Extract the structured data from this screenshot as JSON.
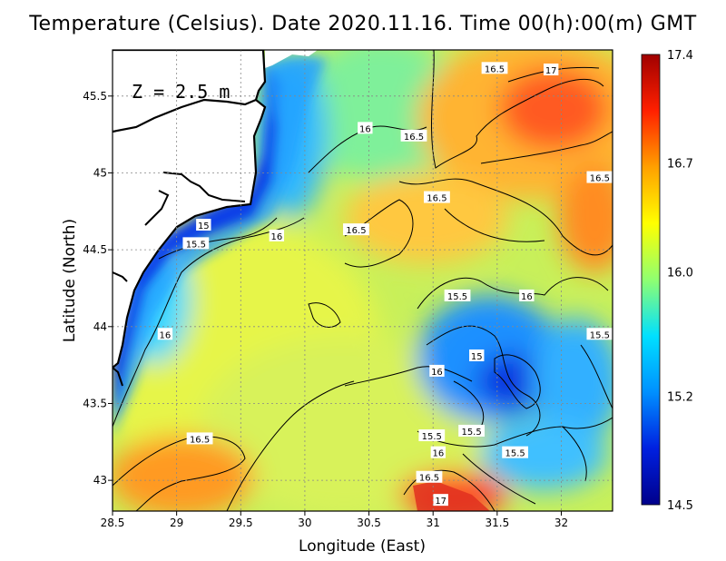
{
  "title": "Temperature (Celsius). Date 2020.11.16. Time 00(h):00(m) GMT",
  "depth_label": "Z = 2.5 m",
  "x_axis": {
    "label": "Longitude (East)",
    "ticks": [
      "28.5",
      "29",
      "29.5",
      "30",
      "30.5",
      "31",
      "31.5",
      "32"
    ],
    "range": [
      28.5,
      32.4
    ]
  },
  "y_axis": {
    "label": "Latitude (North)",
    "ticks": [
      "43",
      "43.5",
      "44",
      "44.5",
      "45",
      "45.5"
    ],
    "range": [
      42.8,
      45.8
    ]
  },
  "colorbar": {
    "ticks": [
      "17.4",
      "16.7",
      "16.0",
      "15.2",
      "14.5"
    ],
    "range": [
      14.5,
      17.4
    ],
    "colors": [
      "#00008b",
      "#0020e0",
      "#0090ff",
      "#00e0ff",
      "#90ff70",
      "#ffff00",
      "#ffa000",
      "#ff2000",
      "#a00000"
    ]
  },
  "contour_labels": [
    {
      "text": "16.5",
      "lon": 31.48,
      "lat": 45.68
    },
    {
      "text": "17",
      "lon": 31.92,
      "lat": 45.67
    },
    {
      "text": "16",
      "lon": 30.47,
      "lat": 45.29
    },
    {
      "text": "16.5",
      "lon": 30.85,
      "lat": 45.24
    },
    {
      "text": "16.5",
      "lon": 32.3,
      "lat": 44.97
    },
    {
      "text": "16.5",
      "lon": 31.03,
      "lat": 44.84
    },
    {
      "text": "15",
      "lon": 29.21,
      "lat": 44.66
    },
    {
      "text": "16",
      "lon": 29.78,
      "lat": 44.59
    },
    {
      "text": "16.5",
      "lon": 30.4,
      "lat": 44.63
    },
    {
      "text": "15.5",
      "lon": 29.15,
      "lat": 44.54
    },
    {
      "text": "15.5",
      "lon": 31.19,
      "lat": 44.2
    },
    {
      "text": "16",
      "lon": 31.73,
      "lat": 44.2
    },
    {
      "text": "16",
      "lon": 28.91,
      "lat": 43.95
    },
    {
      "text": "15.5",
      "lon": 32.3,
      "lat": 43.95
    },
    {
      "text": "15",
      "lon": 31.34,
      "lat": 43.81
    },
    {
      "text": "16",
      "lon": 31.03,
      "lat": 43.71
    },
    {
      "text": "15.5",
      "lon": 31.3,
      "lat": 43.32
    },
    {
      "text": "15.5",
      "lon": 30.99,
      "lat": 43.29
    },
    {
      "text": "16.5",
      "lon": 29.18,
      "lat": 43.27
    },
    {
      "text": "16",
      "lon": 31.04,
      "lat": 43.18
    },
    {
      "text": "15.5",
      "lon": 31.64,
      "lat": 43.18
    },
    {
      "text": "16.5",
      "lon": 30.97,
      "lat": 43.02
    },
    {
      "text": "17",
      "lon": 31.06,
      "lat": 42.87
    }
  ]
}
